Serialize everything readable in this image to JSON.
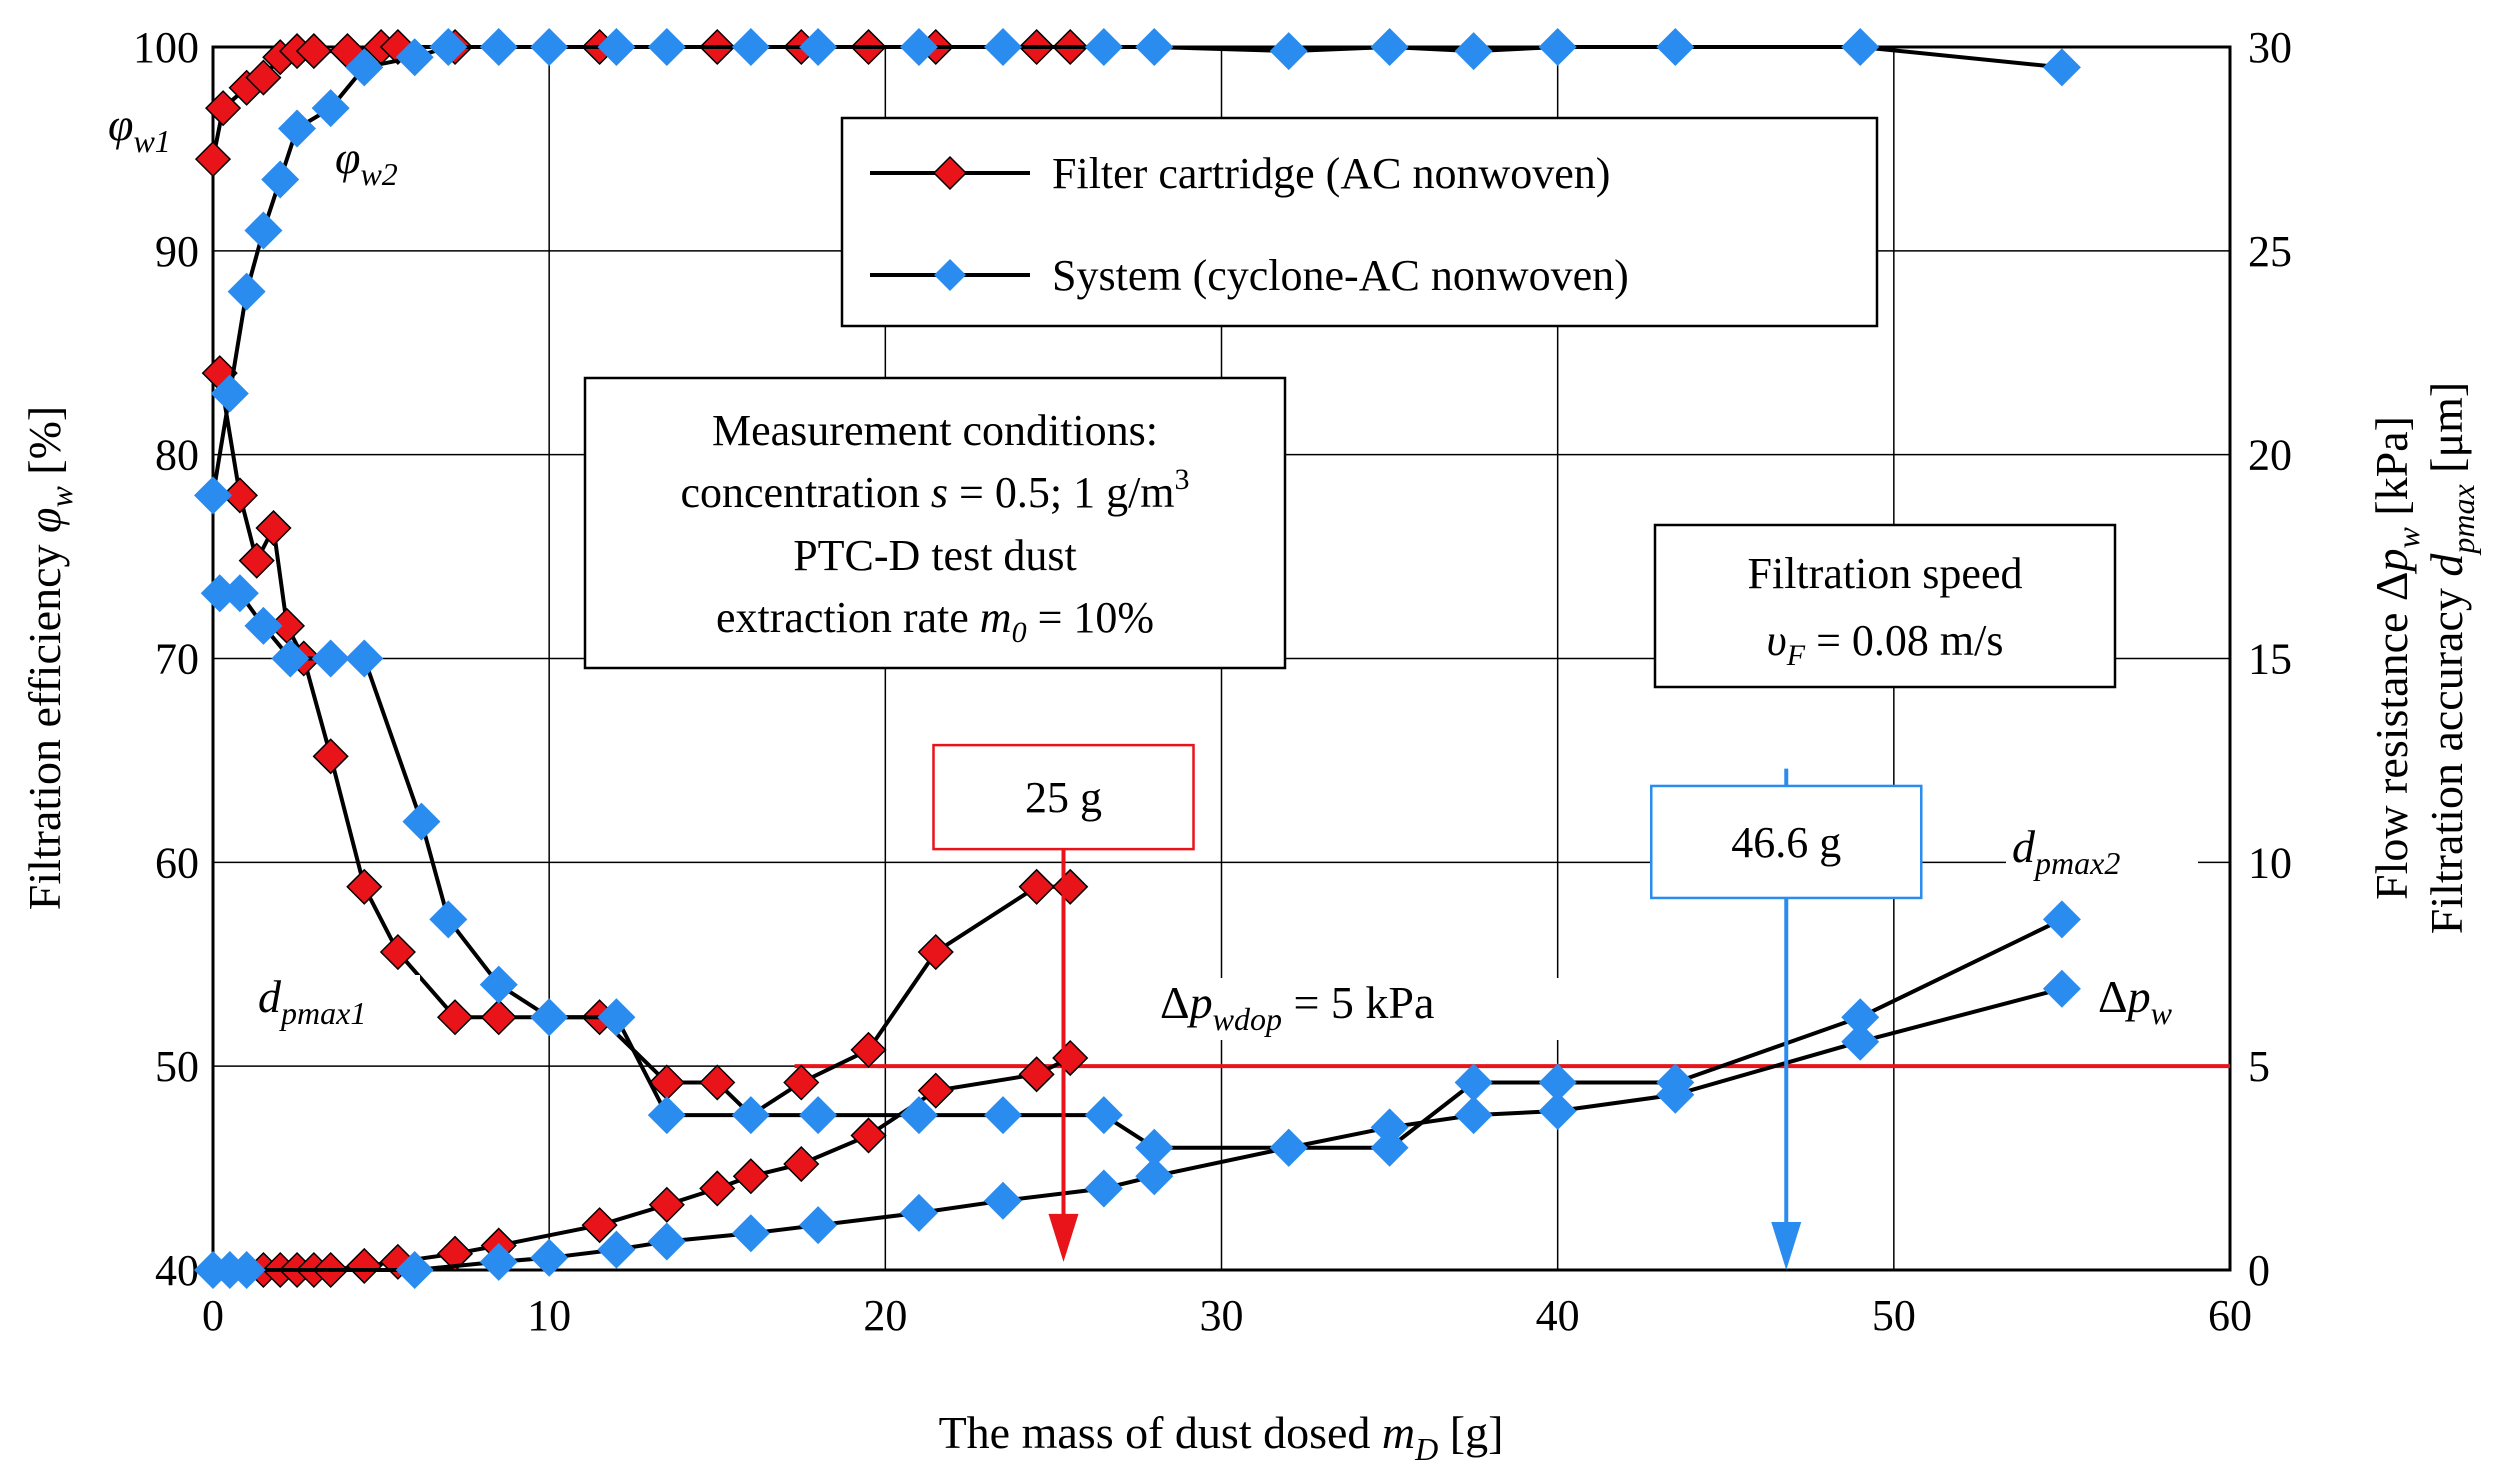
{
  "chart_data": {
    "type": "line",
    "x": {
      "label": [
        "The mass of dust dosed ",
        "m",
        "D",
        " [g]"
      ],
      "lim": [
        0,
        60
      ],
      "ticks": [
        "0",
        "10",
        "20",
        "30",
        "40",
        "50",
        "60"
      ]
    },
    "y_left": {
      "label": [
        "Filtration efficiency ",
        "φ",
        "w",
        " [%]"
      ],
      "lim": [
        40,
        100
      ],
      "ticks": [
        "40",
        "50",
        "60",
        "70",
        "80",
        "90",
        "100"
      ]
    },
    "y_right": {
      "label_1": [
        "Flow resistance Δ",
        "p",
        "w",
        " [kPa]"
      ],
      "label_2": [
        "Filtration accuracy ",
        "d",
        "pmax",
        " [μm]"
      ],
      "lim": [
        0,
        30
      ],
      "ticks": [
        "0",
        "5",
        "10",
        "15",
        "20",
        "25",
        "30"
      ]
    },
    "grid": true,
    "legend_position": "top-center",
    "series": [
      {
        "name": "Filter cartridge (AC nonwoven)",
        "color": "#e8141a",
        "marker": "diamond",
        "curves": [
          {
            "id": "phi_w1",
            "axis": "left",
            "x": [
              0,
              0.3,
              1,
              1.5,
              2,
              2.5,
              3,
              4,
              5,
              5.5,
              7.2,
              8.5,
              11.5,
              13.5,
              15,
              16,
              17.5,
              19.5,
              21.5,
              24.5,
              25.5
            ],
            "y": [
              94.5,
              97,
              98,
              98.5,
              99.5,
              99.8,
              99.8,
              99.8,
              100,
              100,
              100,
              100,
              100,
              100,
              100,
              100,
              100,
              100,
              100,
              100,
              100
            ]
          },
          {
            "id": "dpmax1",
            "axis": "right",
            "x": [
              0.2,
              0.8,
              1.3,
              1.8,
              2.2,
              2.7,
              3.5,
              4.5,
              5.5,
              7.2,
              8.5,
              11.5,
              13.5,
              15,
              16,
              17.5,
              19.5,
              21.5,
              24.5,
              25.5
            ],
            "y": [
              22,
              19,
              17.4,
              18.2,
              15.8,
              15,
              12.6,
              9.4,
              7.8,
              6.2,
              6.2,
              6.2,
              4.6,
              4.6,
              3.8,
              4.6,
              5.4,
              7.8,
              9.4,
              9.4
            ]
          },
          {
            "id": "dpw1",
            "axis": "right",
            "x": [
              0,
              0.5,
              1,
              1.5,
              2,
              2.5,
              3,
              3.5,
              4.5,
              5.5,
              7.2,
              8.5,
              11.5,
              13.5,
              15,
              16,
              17.5,
              19.5,
              21.5,
              24.5,
              25.5
            ],
            "y": [
              0,
              0,
              0,
              0,
              0,
              0,
              0,
              0,
              0.1,
              0.2,
              0.4,
              0.6,
              1.1,
              1.6,
              2.0,
              2.3,
              2.6,
              3.3,
              4.4,
              4.8,
              5.2
            ]
          }
        ]
      },
      {
        "name": "System (cyclone-AC nonwoven)",
        "color": "#2b8cf0",
        "marker": "diamond",
        "curves": [
          {
            "id": "phi_w2",
            "axis": "left",
            "x": [
              0,
              0.5,
              1,
              1.5,
              2,
              2.5,
              3.5,
              4.5,
              6,
              7,
              8.5,
              10,
              12,
              13.5,
              16,
              18,
              21,
              23.5,
              26.5,
              28,
              32,
              35,
              37.5,
              40,
              43.5,
              49,
              55
            ],
            "y": [
              78,
              83,
              88,
              91,
              93.5,
              96,
              97,
              99,
              99.5,
              100,
              100,
              100,
              100,
              100,
              100,
              100,
              100,
              100,
              100,
              100,
              99.8,
              100,
              99.8,
              100,
              100,
              100,
              99
            ]
          },
          {
            "id": "dpmax2",
            "axis": "right",
            "x": [
              0.2,
              0.8,
              1.5,
              2.3,
              3.5,
              4.5,
              6.2,
              7,
              8.5,
              10,
              12,
              13.5,
              16,
              18,
              21,
              23.5,
              26.5,
              28,
              32,
              35,
              37.5,
              40,
              43.5,
              49,
              55
            ],
            "y": [
              16.6,
              16.6,
              15.8,
              15,
              15,
              15,
              11,
              8.6,
              7,
              6.2,
              6.2,
              3.8,
              3.8,
              3.8,
              3.8,
              3.8,
              3.8,
              3,
              3,
              3,
              4.6,
              4.6,
              4.6,
              6.2,
              8.6
            ]
          },
          {
            "id": "dpw2",
            "axis": "right",
            "x": [
              0,
              0.5,
              1,
              6,
              8.5,
              10,
              12,
              13.5,
              16,
              18,
              21,
              23.5,
              26.5,
              28,
              32,
              35,
              37.5,
              40,
              43.5,
              49,
              55
            ],
            "y": [
              0,
              0,
              0,
              0,
              0.2,
              0.3,
              0.5,
              0.7,
              0.9,
              1.1,
              1.4,
              1.7,
              2.0,
              2.3,
              3.0,
              3.5,
              3.8,
              3.9,
              4.3,
              5.6,
              6.9
            ]
          }
        ]
      }
    ],
    "reference_lines": [
      {
        "axis": "right",
        "y": 5,
        "x_from": 17.3,
        "x_to": 60,
        "color": "#e8141a"
      }
    ],
    "markers": [
      {
        "x": 25.3,
        "y_from": 12.6,
        "y_to": 0.2,
        "color": "#e8141a",
        "label": "25 g",
        "label_center_x": 25.3,
        "label_center_y": 11.6
      },
      {
        "x": 46.8,
        "y_from": 12.3,
        "y_to": 0.0,
        "color": "#2b8cf0",
        "label": "46.6 g",
        "label_center_x": 46.8,
        "label_center_y": 10.5
      }
    ],
    "boxes": {
      "conditions": {
        "lines": [
          [
            "Measurement conditions:"
          ],
          [
            "concentration ",
            "s",
            " = 0.5; 1 g/m",
            "3"
          ],
          [
            "PTC-D test dust"
          ],
          [
            "extraction rate ",
            "m",
            "0",
            " = 10%"
          ]
        ]
      },
      "speed": {
        "lines": [
          [
            "Filtration speed"
          ],
          [
            "υ",
            "F",
            " = 0.08 m/s"
          ]
        ]
      }
    },
    "annotations": {
      "phi_w1": [
        "φ",
        "w1"
      ],
      "phi_w2": [
        "φ",
        "w2"
      ],
      "dpmax1": [
        "d",
        "pmax1"
      ],
      "dpmax2": [
        "d",
        "pmax2"
      ],
      "dpw": [
        "Δ",
        "p",
        "w"
      ],
      "dpwdop": [
        "Δ",
        "p",
        "wdop",
        " = 5 kPa"
      ]
    }
  }
}
